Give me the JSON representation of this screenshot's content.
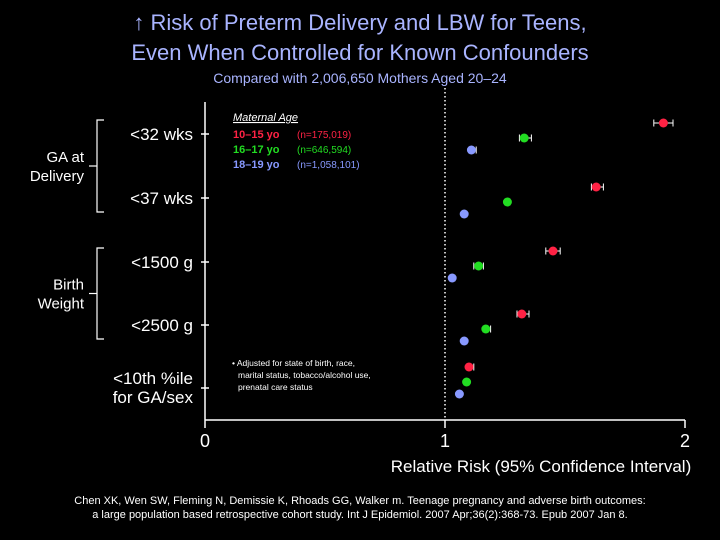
{
  "title": {
    "line1": "↑ Risk of Preterm Delivery and LBW for Teens,",
    "line2": "Even When Controlled for Known Confounders",
    "subtitle": "Compared with 2,006,650 Mothers Aged 20–24"
  },
  "footnote": {
    "line1": "• Adjusted for state of birth, race,",
    "line2": "marital status, tobacco/alcohol use,",
    "line3": "prenatal care status"
  },
  "citation": {
    "line1": "Chen XK, Wen SW, Fleming N, Demissie K, Rhoads GG, Walker m. Teenage pregnancy and adverse birth outcomes:",
    "line2": "a large population based retrospective cohort study. Int J Epidemiol. 2007 Apr;36(2):368-73. Epub 2007 Jan 8."
  },
  "chart_data": {
    "type": "scatter",
    "xlabel": "Relative Risk (95% Confidence Interval)",
    "xlim": [
      0,
      2
    ],
    "xticks": [
      "0",
      "1",
      "2"
    ],
    "reference_line": 1,
    "legend_title": "Maternal Age",
    "groups": [
      {
        "label": "GA at\nDelivery",
        "outcomes": [
          0,
          1
        ]
      },
      {
        "label": "Birth\nWeight",
        "outcomes": [
          2,
          3
        ]
      }
    ],
    "outcomes": [
      "<32 wks",
      "<37 wks",
      "<1500 g",
      "<2500 g",
      "<10th %ile\nfor GA/sex"
    ],
    "series": [
      {
        "name": "10–15 yo",
        "n": "(n=175,019)",
        "color": "#ff2244",
        "values": [
          1.91,
          1.63,
          1.45,
          1.32,
          1.1
        ],
        "ci_low": [
          1.87,
          1.61,
          1.42,
          1.3,
          1.09
        ],
        "ci_high": [
          1.95,
          1.66,
          1.48,
          1.35,
          1.12
        ]
      },
      {
        "name": "16–17 yo",
        "n": "(n=646,594)",
        "color": "#22dd22",
        "values": [
          1.33,
          1.26,
          1.14,
          1.17,
          1.09
        ],
        "ci_low": [
          1.31,
          1.25,
          1.12,
          1.16,
          1.085
        ],
        "ci_high": [
          1.36,
          1.27,
          1.16,
          1.19,
          1.095
        ]
      },
      {
        "name": "18–19 yo",
        "n": "(n=1,058,101)",
        "color": "#8899ff",
        "values": [
          1.11,
          1.08,
          1.03,
          1.08,
          1.06
        ],
        "ci_low": [
          1.1,
          1.075,
          1.02,
          1.075,
          1.055
        ],
        "ci_high": [
          1.13,
          1.085,
          1.04,
          1.085,
          1.065
        ]
      }
    ]
  }
}
